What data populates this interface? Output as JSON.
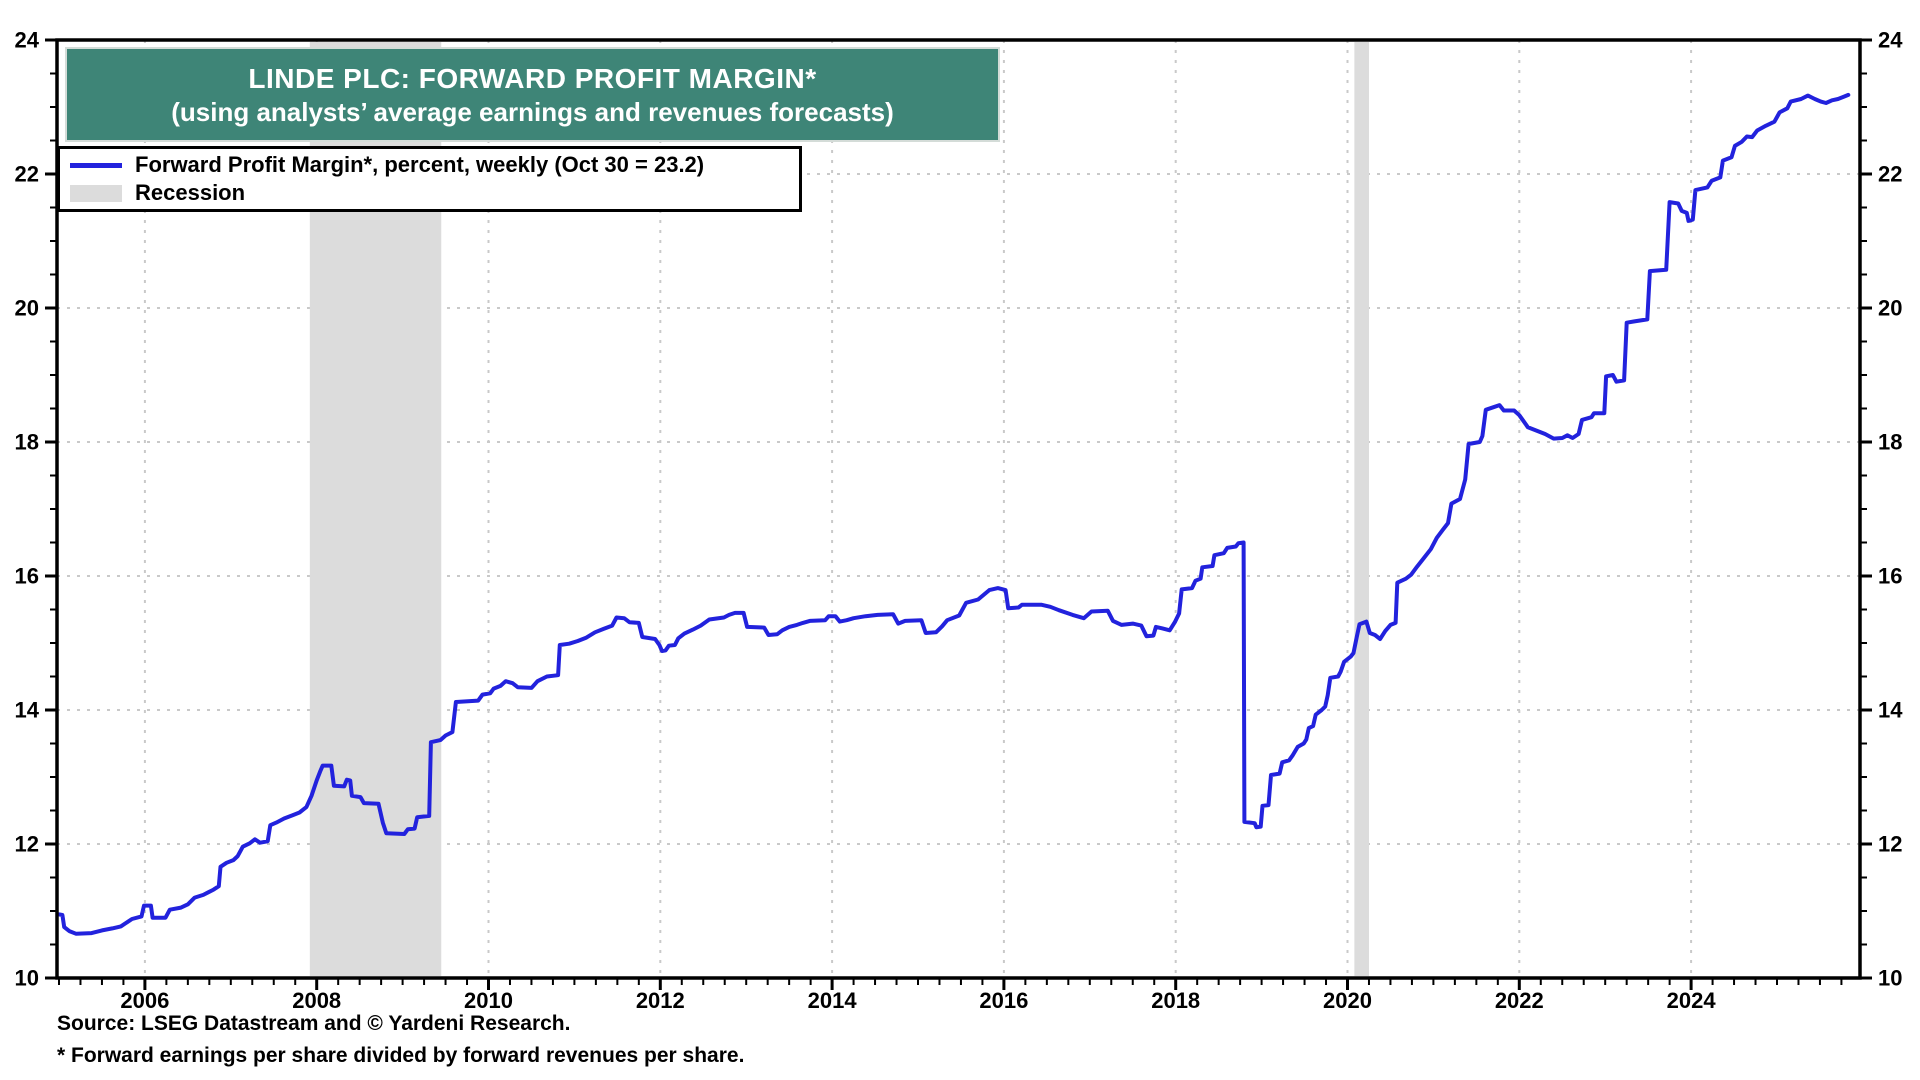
{
  "colors": {
    "accent_teal": "#3E8577",
    "line_blue": "#2222DD",
    "recession_gray": "#DCDCDC",
    "grid_gray": "#C9C9C9",
    "frame_black": "#000000"
  },
  "legend": {
    "recession_label": "Recession"
  },
  "footer": {
    "source": "Source: LSEG Datastream and © Yardeni Research.",
    "footnote": "* Forward earnings per share divided by forward revenues per share."
  },
  "chart_data": {
    "type": "line",
    "title": "LINDE PLC: FORWARD PROFIT MARGIN*",
    "subtitle": "(using analysts’ average earnings and revenues forecasts)",
    "xlabel": "",
    "ylabel": "percent",
    "x_axis": {
      "min": 2004.98,
      "max": 2025.96,
      "label_years": [
        2006,
        2008,
        2010,
        2012,
        2014,
        2016,
        2018,
        2020,
        2022,
        2024
      ],
      "minor_step_years": 0.25
    },
    "y_axis": {
      "min": 10,
      "max": 24,
      "major_ticks": [
        10,
        12,
        14,
        16,
        18,
        20,
        22,
        24
      ],
      "gridline_values": [
        12,
        14,
        16,
        18,
        20,
        22
      ],
      "minor_step": 0.5,
      "labeled_both_sides": true
    },
    "grid": {
      "style": "dotted",
      "color": "#C9C9C9"
    },
    "recession_bands": [
      [
        2007.92,
        2009.45
      ],
      [
        2020.08,
        2020.25
      ]
    ],
    "last_point": {
      "date_label": "Oct 30",
      "value": 23.2
    },
    "series": [
      {
        "name": "Forward Profit Margin*, percent, weekly (Oct 30 = 23.2)",
        "color": "#2222DD",
        "points": [
          [
            2005.0,
            10.95
          ],
          [
            2005.04,
            10.94
          ],
          [
            2005.06,
            10.76
          ],
          [
            2005.12,
            10.7
          ],
          [
            2005.2,
            10.66
          ],
          [
            2005.38,
            10.67
          ],
          [
            2005.5,
            10.71
          ],
          [
            2005.62,
            10.74
          ],
          [
            2005.72,
            10.77
          ],
          [
            2005.85,
            10.88
          ],
          [
            2005.96,
            10.92
          ],
          [
            2005.99,
            11.08
          ],
          [
            2006.07,
            11.08
          ],
          [
            2006.09,
            10.9
          ],
          [
            2006.24,
            10.9
          ],
          [
            2006.29,
            11.02
          ],
          [
            2006.42,
            11.05
          ],
          [
            2006.5,
            11.1
          ],
          [
            2006.58,
            11.2
          ],
          [
            2006.68,
            11.24
          ],
          [
            2006.74,
            11.28
          ],
          [
            2006.8,
            11.32
          ],
          [
            2006.86,
            11.37
          ],
          [
            2006.88,
            11.66
          ],
          [
            2006.95,
            11.72
          ],
          [
            2007.03,
            11.76
          ],
          [
            2007.08,
            11.82
          ],
          [
            2007.14,
            11.96
          ],
          [
            2007.22,
            12.01
          ],
          [
            2007.28,
            12.07
          ],
          [
            2007.34,
            12.02
          ],
          [
            2007.43,
            12.04
          ],
          [
            2007.46,
            12.28
          ],
          [
            2007.53,
            12.32
          ],
          [
            2007.62,
            12.38
          ],
          [
            2007.72,
            12.43
          ],
          [
            2007.8,
            12.47
          ],
          [
            2007.88,
            12.55
          ],
          [
            2007.94,
            12.72
          ],
          [
            2008.0,
            12.95
          ],
          [
            2008.04,
            13.08
          ],
          [
            2008.07,
            13.17
          ],
          [
            2008.17,
            13.17
          ],
          [
            2008.2,
            12.87
          ],
          [
            2008.32,
            12.86
          ],
          [
            2008.35,
            12.96
          ],
          [
            2008.39,
            12.95
          ],
          [
            2008.41,
            12.72
          ],
          [
            2008.51,
            12.7
          ],
          [
            2008.55,
            12.61
          ],
          [
            2008.72,
            12.6
          ],
          [
            2008.77,
            12.32
          ],
          [
            2008.81,
            12.16
          ],
          [
            2009.02,
            12.15
          ],
          [
            2009.06,
            12.22
          ],
          [
            2009.14,
            12.23
          ],
          [
            2009.17,
            12.4
          ],
          [
            2009.31,
            12.42
          ],
          [
            2009.33,
            13.52
          ],
          [
            2009.44,
            13.55
          ],
          [
            2009.5,
            13.62
          ],
          [
            2009.58,
            13.67
          ],
          [
            2009.62,
            14.12
          ],
          [
            2009.88,
            14.14
          ],
          [
            2009.93,
            14.23
          ],
          [
            2010.02,
            14.25
          ],
          [
            2010.06,
            14.32
          ],
          [
            2010.14,
            14.36
          ],
          [
            2010.2,
            14.43
          ],
          [
            2010.28,
            14.4
          ],
          [
            2010.34,
            14.34
          ],
          [
            2010.5,
            14.33
          ],
          [
            2010.57,
            14.43
          ],
          [
            2010.68,
            14.5
          ],
          [
            2010.81,
            14.52
          ],
          [
            2010.83,
            14.97
          ],
          [
            2010.94,
            14.99
          ],
          [
            2011.04,
            15.03
          ],
          [
            2011.14,
            15.08
          ],
          [
            2011.24,
            15.16
          ],
          [
            2011.34,
            15.21
          ],
          [
            2011.44,
            15.26
          ],
          [
            2011.49,
            15.38
          ],
          [
            2011.58,
            15.37
          ],
          [
            2011.64,
            15.31
          ],
          [
            2011.75,
            15.3
          ],
          [
            2011.79,
            15.09
          ],
          [
            2011.94,
            15.06
          ],
          [
            2011.99,
            14.97
          ],
          [
            2012.02,
            14.88
          ],
          [
            2012.06,
            14.89
          ],
          [
            2012.1,
            14.96
          ],
          [
            2012.17,
            14.97
          ],
          [
            2012.21,
            15.07
          ],
          [
            2012.28,
            15.14
          ],
          [
            2012.38,
            15.2
          ],
          [
            2012.47,
            15.26
          ],
          [
            2012.57,
            15.35
          ],
          [
            2012.74,
            15.38
          ],
          [
            2012.8,
            15.42
          ],
          [
            2012.87,
            15.45
          ],
          [
            2012.97,
            15.45
          ],
          [
            2013.01,
            15.24
          ],
          [
            2013.21,
            15.23
          ],
          [
            2013.26,
            15.12
          ],
          [
            2013.36,
            15.13
          ],
          [
            2013.42,
            15.19
          ],
          [
            2013.5,
            15.24
          ],
          [
            2013.59,
            15.27
          ],
          [
            2013.66,
            15.3
          ],
          [
            2013.74,
            15.33
          ],
          [
            2013.92,
            15.34
          ],
          [
            2013.96,
            15.4
          ],
          [
            2014.04,
            15.4
          ],
          [
            2014.09,
            15.32
          ],
          [
            2014.17,
            15.34
          ],
          [
            2014.25,
            15.37
          ],
          [
            2014.39,
            15.4
          ],
          [
            2014.53,
            15.42
          ],
          [
            2014.71,
            15.43
          ],
          [
            2014.77,
            15.29
          ],
          [
            2014.85,
            15.33
          ],
          [
            2015.04,
            15.34
          ],
          [
            2015.09,
            15.15
          ],
          [
            2015.21,
            15.16
          ],
          [
            2015.28,
            15.25
          ],
          [
            2015.34,
            15.34
          ],
          [
            2015.48,
            15.41
          ],
          [
            2015.56,
            15.6
          ],
          [
            2015.7,
            15.65
          ],
          [
            2015.83,
            15.79
          ],
          [
            2015.93,
            15.82
          ],
          [
            2016.02,
            15.79
          ],
          [
            2016.05,
            15.52
          ],
          [
            2016.17,
            15.53
          ],
          [
            2016.21,
            15.57
          ],
          [
            2016.44,
            15.57
          ],
          [
            2016.54,
            15.54
          ],
          [
            2016.64,
            15.49
          ],
          [
            2016.8,
            15.42
          ],
          [
            2016.93,
            15.37
          ],
          [
            2017.02,
            15.47
          ],
          [
            2017.21,
            15.48
          ],
          [
            2017.27,
            15.33
          ],
          [
            2017.37,
            15.27
          ],
          [
            2017.5,
            15.29
          ],
          [
            2017.6,
            15.26
          ],
          [
            2017.66,
            15.1
          ],
          [
            2017.74,
            15.11
          ],
          [
            2017.77,
            15.24
          ],
          [
            2017.84,
            15.22
          ],
          [
            2017.93,
            15.19
          ],
          [
            2017.99,
            15.31
          ],
          [
            2018.04,
            15.44
          ],
          [
            2018.07,
            15.8
          ],
          [
            2018.19,
            15.82
          ],
          [
            2018.23,
            15.93
          ],
          [
            2018.29,
            15.96
          ],
          [
            2018.31,
            16.13
          ],
          [
            2018.43,
            16.15
          ],
          [
            2018.45,
            16.31
          ],
          [
            2018.56,
            16.34
          ],
          [
            2018.6,
            16.42
          ],
          [
            2018.7,
            16.44
          ],
          [
            2018.73,
            16.49
          ],
          [
            2018.79,
            16.5
          ],
          [
            2018.8,
            12.33
          ],
          [
            2018.92,
            12.31
          ],
          [
            2018.94,
            12.25
          ],
          [
            2018.99,
            12.26
          ],
          [
            2019.01,
            12.57
          ],
          [
            2019.08,
            12.58
          ],
          [
            2019.11,
            13.03
          ],
          [
            2019.21,
            13.05
          ],
          [
            2019.24,
            13.22
          ],
          [
            2019.32,
            13.25
          ],
          [
            2019.36,
            13.32
          ],
          [
            2019.42,
            13.45
          ],
          [
            2019.49,
            13.5
          ],
          [
            2019.52,
            13.56
          ],
          [
            2019.55,
            13.73
          ],
          [
            2019.6,
            13.76
          ],
          [
            2019.63,
            13.93
          ],
          [
            2019.7,
            14.0
          ],
          [
            2019.74,
            14.05
          ],
          [
            2019.77,
            14.22
          ],
          [
            2019.8,
            14.48
          ],
          [
            2019.89,
            14.5
          ],
          [
            2019.92,
            14.57
          ],
          [
            2019.96,
            14.72
          ],
          [
            2020.04,
            14.8
          ],
          [
            2020.07,
            14.85
          ],
          [
            2020.11,
            15.1
          ],
          [
            2020.14,
            15.28
          ],
          [
            2020.22,
            15.32
          ],
          [
            2020.26,
            15.15
          ],
          [
            2020.32,
            15.12
          ],
          [
            2020.38,
            15.06
          ],
          [
            2020.44,
            15.18
          ],
          [
            2020.5,
            15.27
          ],
          [
            2020.56,
            15.3
          ],
          [
            2020.58,
            15.9
          ],
          [
            2020.68,
            15.96
          ],
          [
            2020.74,
            16.02
          ],
          [
            2020.81,
            16.14
          ],
          [
            2020.89,
            16.27
          ],
          [
            2020.97,
            16.4
          ],
          [
            2021.04,
            16.57
          ],
          [
            2021.11,
            16.69
          ],
          [
            2021.17,
            16.79
          ],
          [
            2021.21,
            17.08
          ],
          [
            2021.31,
            17.15
          ],
          [
            2021.37,
            17.44
          ],
          [
            2021.41,
            17.97
          ],
          [
            2021.54,
            18.0
          ],
          [
            2021.57,
            18.09
          ],
          [
            2021.61,
            18.48
          ],
          [
            2021.7,
            18.52
          ],
          [
            2021.77,
            18.55
          ],
          [
            2021.82,
            18.47
          ],
          [
            2021.94,
            18.47
          ],
          [
            2022.0,
            18.4
          ],
          [
            2022.04,
            18.33
          ],
          [
            2022.1,
            18.22
          ],
          [
            2022.2,
            18.17
          ],
          [
            2022.3,
            18.12
          ],
          [
            2022.4,
            18.05
          ],
          [
            2022.5,
            18.06
          ],
          [
            2022.56,
            18.1
          ],
          [
            2022.62,
            18.06
          ],
          [
            2022.69,
            18.12
          ],
          [
            2022.73,
            18.33
          ],
          [
            2022.84,
            18.37
          ],
          [
            2022.87,
            18.43
          ],
          [
            2022.99,
            18.43
          ],
          [
            2023.01,
            18.98
          ],
          [
            2023.09,
            19.0
          ],
          [
            2023.13,
            18.9
          ],
          [
            2023.22,
            18.92
          ],
          [
            2023.25,
            19.78
          ],
          [
            2023.34,
            19.8
          ],
          [
            2023.49,
            19.83
          ],
          [
            2023.52,
            20.55
          ],
          [
            2023.71,
            20.57
          ],
          [
            2023.75,
            21.58
          ],
          [
            2023.85,
            21.56
          ],
          [
            2023.89,
            21.45
          ],
          [
            2023.95,
            21.42
          ],
          [
            2023.97,
            21.3
          ],
          [
            2024.02,
            21.32
          ],
          [
            2024.05,
            21.76
          ],
          [
            2024.19,
            21.8
          ],
          [
            2024.24,
            21.9
          ],
          [
            2024.34,
            21.95
          ],
          [
            2024.37,
            22.2
          ],
          [
            2024.47,
            22.25
          ],
          [
            2024.51,
            22.42
          ],
          [
            2024.59,
            22.48
          ],
          [
            2024.65,
            22.56
          ],
          [
            2024.71,
            22.55
          ],
          [
            2024.77,
            22.65
          ],
          [
            2024.87,
            22.72
          ],
          [
            2024.97,
            22.78
          ],
          [
            2025.03,
            22.92
          ],
          [
            2025.12,
            22.98
          ],
          [
            2025.16,
            23.08
          ],
          [
            2025.28,
            23.12
          ],
          [
            2025.36,
            23.17
          ],
          [
            2025.44,
            23.12
          ],
          [
            2025.51,
            23.08
          ],
          [
            2025.57,
            23.06
          ],
          [
            2025.64,
            23.1
          ],
          [
            2025.71,
            23.12
          ],
          [
            2025.77,
            23.15
          ],
          [
            2025.83,
            23.18
          ]
        ]
      }
    ]
  }
}
